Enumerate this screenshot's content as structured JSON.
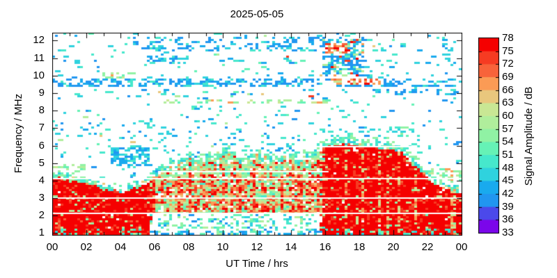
{
  "chart_data": {
    "type": "heatmap",
    "subtype": "spectrogram",
    "title": "2025-05-05",
    "xlabel": "UT Time / hrs",
    "ylabel": "Frequency / MHz",
    "colorbar_label": "Signal Amplitude / dB",
    "x_tick_labels": [
      "00",
      "02",
      "04",
      "06",
      "08",
      "10",
      "12",
      "14",
      "16",
      "18",
      "20",
      "22",
      "00"
    ],
    "x_tick_hours": [
      0,
      2,
      4,
      6,
      8,
      10,
      12,
      14,
      16,
      18,
      20,
      22,
      24
    ],
    "x_minor_every_hours": 1,
    "x_range_hours": [
      0,
      24
    ],
    "y_tick_labels": [
      "1",
      "2",
      "3",
      "4",
      "5",
      "6",
      "7",
      "8",
      "9",
      "10",
      "11",
      "12"
    ],
    "y_ticks_mhz": [
      1,
      2,
      3,
      4,
      5,
      6,
      7,
      8,
      9,
      10,
      11,
      12
    ],
    "y_range_mhz": [
      0.9,
      12.45
    ],
    "grid": false,
    "legend_position": "colorbar-right",
    "colorbar": {
      "levels": [
        33,
        36,
        39,
        42,
        45,
        48,
        51,
        54,
        57,
        60,
        63,
        66,
        69,
        72,
        75,
        78
      ],
      "colors": [
        "#7b06ea",
        "#4b49ea",
        "#2196f0",
        "#19aaee",
        "#2fd2de",
        "#46e8cc",
        "#66f2b6",
        "#90f2a4",
        "#b0ee9c",
        "#c9e794",
        "#e9c77d",
        "#fb9b55",
        "#f8633a",
        "#f63b22",
        "#f50000"
      ]
    },
    "echo_envelope_mhz": {
      "t": [
        0,
        0.5,
        1,
        1.5,
        2,
        2.5,
        3,
        3.5,
        4,
        4.5,
        5,
        5.5,
        6,
        6.5,
        7,
        7.5,
        8,
        8.5,
        9,
        9.5,
        10,
        10.5,
        11,
        11.5,
        12,
        12.5,
        13,
        13.5,
        14,
        14.5,
        15,
        15.5,
        16,
        16.5,
        17,
        17.5,
        18,
        18.5,
        19,
        19.5,
        20,
        20.5,
        21,
        21.5,
        22,
        22.5,
        23,
        23.5,
        24
      ],
      "fmax": [
        4.15,
        4.1,
        4.0,
        3.95,
        3.85,
        3.7,
        3.5,
        3.4,
        3.35,
        3.45,
        3.55,
        3.8,
        4.2,
        4.5,
        4.75,
        4.9,
        5.15,
        4.9,
        5.0,
        5.1,
        5.45,
        5.3,
        5.15,
        5.0,
        5.2,
        5.0,
        4.95,
        5.05,
        5.3,
        5.1,
        5.2,
        5.5,
        5.9,
        6.05,
        6.1,
        6.0,
        5.95,
        5.9,
        5.85,
        5.8,
        5.75,
        5.55,
        5.1,
        4.6,
        4.1,
        3.75,
        3.55,
        3.45,
        3.4
      ]
    },
    "night_intervals_hours": [
      [
        0,
        5.45
      ],
      [
        16.1,
        24
      ]
    ],
    "day_low_cutoff_mhz": 2.05,
    "white_lines": [
      {
        "f": 2.12,
        "t": [
          0,
          24
        ]
      },
      {
        "f": 3.0,
        "t": [
          0,
          24
        ]
      },
      {
        "f": 4.1,
        "t": [
          0,
          24
        ]
      },
      {
        "f": 4.52,
        "t": [
          6.2,
          16.2
        ]
      },
      {
        "f": 5.95,
        "t": [
          15.5,
          21.4
        ]
      }
    ],
    "speckle_bands": [
      {
        "name": "band-9.6mhz-warm-evening",
        "f": [
          9.5,
          9.78
        ],
        "t": [
          16.3,
          19.5
        ],
        "density": 0.45,
        "palette": "warm"
      },
      {
        "name": "block-red-bits",
        "f": [
          11.3,
          11.9
        ],
        "t": [
          16.05,
          17.3
        ],
        "density": 0.5,
        "palette": "warm"
      },
      {
        "name": "dense-block-evening",
        "f": [
          9.9,
          12.15
        ],
        "t": [
          15.8,
          18.35
        ],
        "density": 0.5,
        "palette": "mixed"
      },
      {
        "name": "band-9.6mhz",
        "f": [
          9.38,
          9.82
        ],
        "t": [
          0,
          24
        ],
        "density": 0.42,
        "palette": "blue"
      },
      {
        "name": "band-9.1mhz-late",
        "f": [
          8.9,
          9.25
        ],
        "t": [
          18.8,
          24
        ],
        "density": 0.32,
        "palette": "blue"
      },
      {
        "name": "band-11.7mhz",
        "f": [
          11.35,
          12.18
        ],
        "t": [
          5.3,
          18.3
        ],
        "density": 0.28,
        "palette": "blue"
      },
      {
        "name": "patch-11mhz-morning",
        "f": [
          10.7,
          12.18
        ],
        "t": [
          5.5,
          7.8
        ],
        "density": 0.3,
        "palette": "blue"
      },
      {
        "name": "band-8.5mhz-day",
        "f": [
          8.35,
          8.62
        ],
        "t": [
          6,
          16.2
        ],
        "density": 0.3,
        "palette": "green"
      },
      {
        "name": "patch-10mhz",
        "f": [
          9.88,
          10.2
        ],
        "t": [
          3.0,
          4.8
        ],
        "density": 0.4,
        "palette": "green"
      },
      {
        "name": "cluster-5mhz",
        "f": [
          4.85,
          5.85
        ],
        "t": [
          3.4,
          5.75
        ],
        "density": 0.52,
        "palette": "cyanblue"
      },
      {
        "name": "dome-halo-evening",
        "f": [
          5.85,
          7.1
        ],
        "t": [
          16.05,
          21.3
        ],
        "density": 0.15,
        "palette": "cyangreen"
      },
      {
        "name": "descent-fringe",
        "f": [
          3.45,
          4.7
        ],
        "t": [
          21.3,
          24
        ],
        "density": 0.35,
        "palette": "green"
      },
      {
        "name": "left-fringe",
        "f": [
          4.2,
          4.95
        ],
        "t": [
          0,
          2.2
        ],
        "density": 0.2,
        "palette": "green"
      },
      {
        "name": "cyan-zone-7mhz",
        "f": [
          6.2,
          7.3
        ],
        "t": [
          0,
          9.5
        ],
        "density": 0.11,
        "palette": "cool"
      },
      {
        "name": "day-halo",
        "f": [
          4.95,
          6.6
        ],
        "t": [
          5.8,
          16.05
        ],
        "density": 0.12,
        "palette": "cool"
      },
      {
        "name": "background-mid",
        "f": [
          2.0,
          6.6
        ],
        "t": [
          0,
          24
        ],
        "density": 0.055,
        "palette": "cool"
      },
      {
        "name": "background-high",
        "f": [
          6.6,
          12.45
        ],
        "t": [
          0,
          24
        ],
        "density": 0.045,
        "palette": "cool"
      }
    ],
    "palettes": {
      "warms": [
        [
          14,
          0.35
        ],
        [
          13,
          0.25
        ],
        [
          12,
          0.25
        ],
        [
          11,
          0.15
        ]
      ],
      "sands": [
        [
          10,
          0.5
        ],
        [
          9,
          0.3
        ],
        [
          11,
          0.2
        ]
      ],
      "greens": [
        [
          7,
          0.4
        ],
        [
          8,
          0.35
        ],
        [
          6,
          0.25
        ]
      ],
      "greens2": [
        [
          7,
          0.3
        ],
        [
          8,
          0.25
        ],
        [
          9,
          0.2
        ],
        [
          6,
          0.15
        ],
        [
          5,
          0.1
        ]
      ],
      "teals": [
        [
          5,
          0.4
        ],
        [
          6,
          0.35
        ],
        [
          4,
          0.25
        ]
      ],
      "cyans": [
        [
          4,
          0.4
        ],
        [
          5,
          0.4
        ],
        [
          6,
          0.2
        ]
      ],
      "blues": [
        [
          2,
          0.5
        ],
        [
          3,
          0.5
        ]
      ],
      "paleStripe": [
        [
          10,
          0.4
        ],
        [
          9,
          0.3
        ],
        [
          11,
          0.3
        ]
      ],
      "fringe": [
        [
          5,
          0.3
        ],
        [
          6,
          0.3
        ],
        [
          7,
          0.25
        ],
        [
          4,
          0.15
        ]
      ],
      "cool": [
        [
          4,
          0.3
        ],
        [
          5,
          0.25
        ],
        [
          2,
          0.16
        ],
        [
          3,
          0.14
        ],
        [
          6,
          0.08
        ],
        [
          8,
          0.04
        ],
        [
          10,
          0.02
        ],
        [
          13,
          0.01
        ]
      ],
      "blue": [
        [
          2,
          0.42
        ],
        [
          3,
          0.3
        ],
        [
          4,
          0.18
        ],
        [
          5,
          0.1
        ]
      ],
      "cyanblue": [
        [
          4,
          0.35
        ],
        [
          3,
          0.35
        ],
        [
          2,
          0.2
        ],
        [
          5,
          0.1
        ]
      ],
      "mixed": [
        [
          2,
          0.3
        ],
        [
          3,
          0.2
        ],
        [
          4,
          0.15
        ],
        [
          6,
          0.12
        ],
        [
          8,
          0.1
        ],
        [
          11,
          0.06
        ],
        [
          13,
          0.04
        ],
        [
          14,
          0.03
        ]
      ],
      "warm": [
        [
          12,
          0.3
        ],
        [
          11,
          0.25
        ],
        [
          13,
          0.2
        ],
        [
          9,
          0.15
        ],
        [
          14,
          0.1
        ]
      ],
      "green": [
        [
          7,
          0.3
        ],
        [
          8,
          0.3
        ],
        [
          6,
          0.2
        ],
        [
          9,
          0.1
        ],
        [
          11,
          0.1
        ]
      ],
      "cyangreen": [
        [
          4,
          0.3
        ],
        [
          5,
          0.3
        ],
        [
          6,
          0.2
        ],
        [
          7,
          0.1
        ],
        [
          2,
          0.1
        ]
      ]
    }
  }
}
